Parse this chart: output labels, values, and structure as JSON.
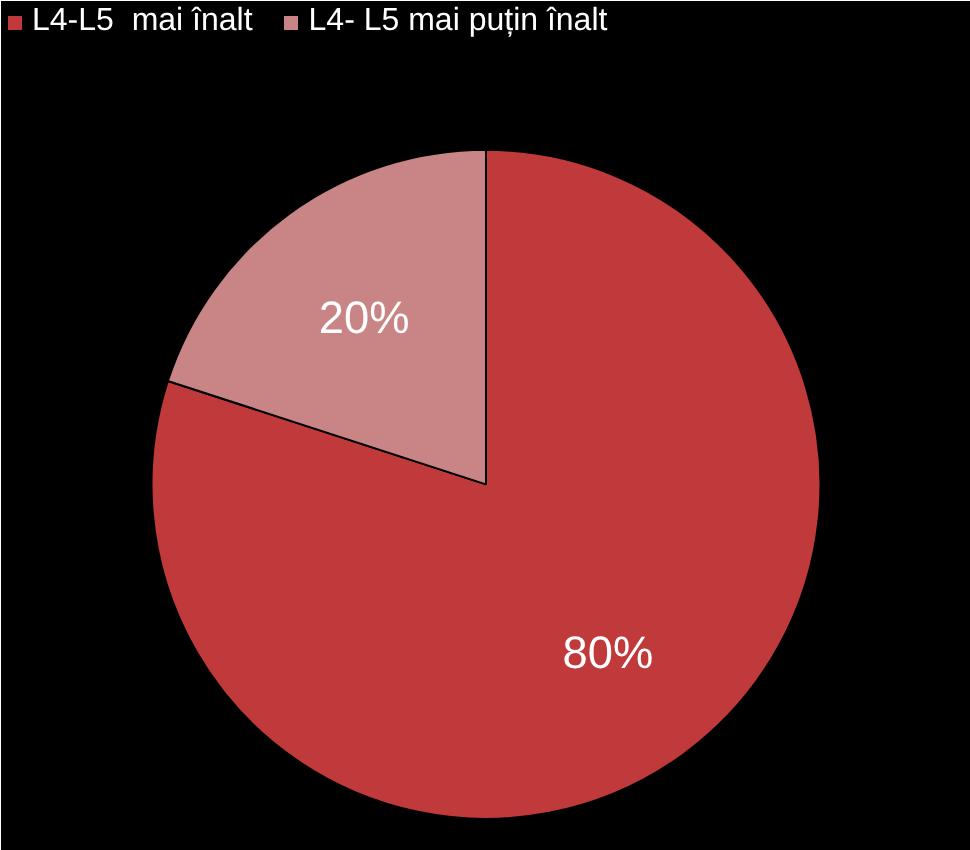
{
  "chart_data": {
    "type": "pie",
    "categories": [
      "L4-L5  mai înalt",
      "L4- L5 mai puțin înalt"
    ],
    "values": [
      80,
      20
    ],
    "colors": [
      "#c0393b",
      "#c98585"
    ],
    "value_labels": [
      "80%",
      "20%"
    ],
    "legend": "top"
  }
}
